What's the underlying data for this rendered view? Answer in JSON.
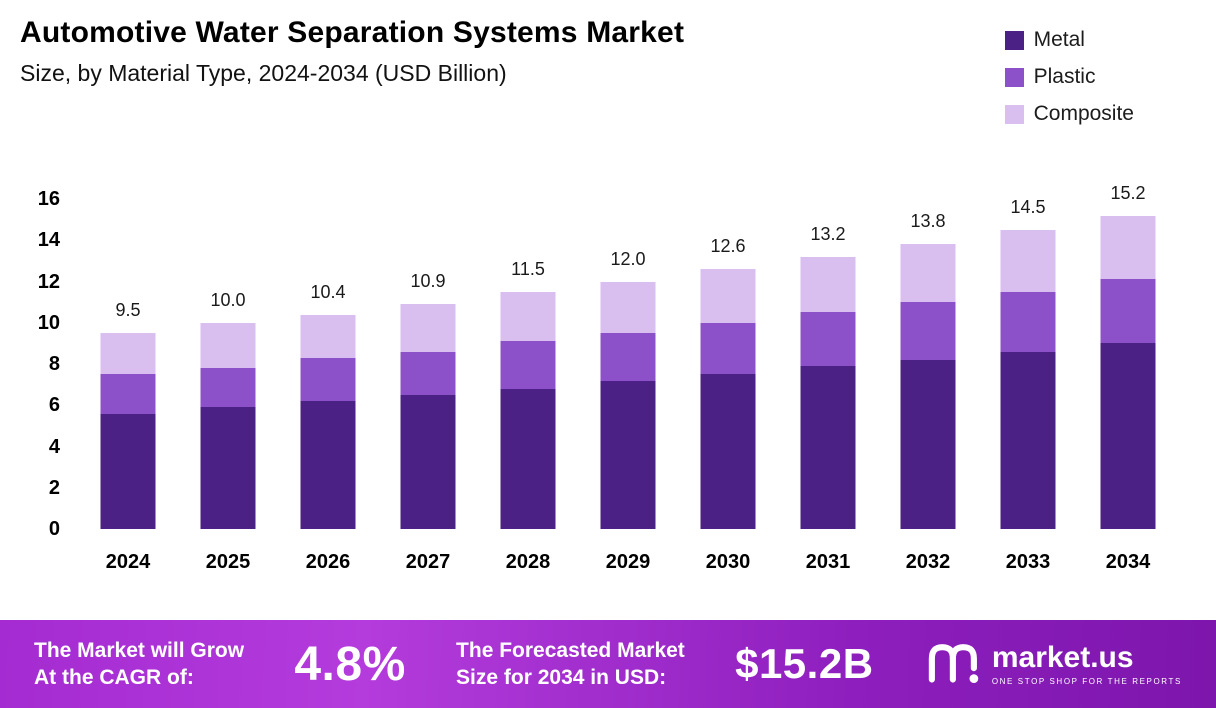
{
  "chart_data": {
    "type": "bar",
    "stacked": true,
    "title": "Automotive Water Separation Systems Market",
    "subtitle": "Size, by Material Type, 2024-2034 (USD Billion)",
    "categories": [
      "2024",
      "2025",
      "2026",
      "2027",
      "2028",
      "2029",
      "2030",
      "2031",
      "2032",
      "2033",
      "2034"
    ],
    "series": [
      {
        "name": "Metal",
        "color": "#4b2185",
        "values": [
          5.6,
          5.9,
          6.2,
          6.5,
          6.8,
          7.2,
          7.5,
          7.9,
          8.2,
          8.6,
          9.0
        ]
      },
      {
        "name": "Plastic",
        "color": "#8c50c8",
        "values": [
          1.9,
          1.9,
          2.1,
          2.1,
          2.3,
          2.3,
          2.5,
          2.6,
          2.8,
          2.9,
          3.1
        ]
      },
      {
        "name": "Composite",
        "color": "#d9bef0",
        "values": [
          2.0,
          2.2,
          2.1,
          2.3,
          2.4,
          2.5,
          2.6,
          2.7,
          2.8,
          3.0,
          3.1
        ]
      }
    ],
    "totals": [
      9.5,
      10.0,
      10.4,
      10.9,
      11.5,
      12.0,
      12.6,
      13.2,
      13.8,
      14.5,
      15.2
    ],
    "total_labels": [
      "9.5",
      "10.0",
      "10.4",
      "10.9",
      "11.5",
      "12.0",
      "12.6",
      "13.2",
      "13.8",
      "14.5",
      "15.2"
    ],
    "ylim": [
      0,
      16
    ],
    "yticks": [
      0,
      2,
      4,
      6,
      8,
      10,
      12,
      14,
      16
    ],
    "ylabel": "",
    "xlabel": "",
    "grid": false,
    "legend_position": "top-right"
  },
  "footer": {
    "cagr_line1": "The Market will Grow",
    "cagr_line2": "At the CAGR of:",
    "cagr_value": "4.8%",
    "forecast_line1": "The Forecasted Market",
    "forecast_line2": "Size for 2034 in USD:",
    "forecast_value": "$15.2B",
    "brand_name": "market.us",
    "brand_tagline": "ONE STOP SHOP FOR THE REPORTS"
  }
}
